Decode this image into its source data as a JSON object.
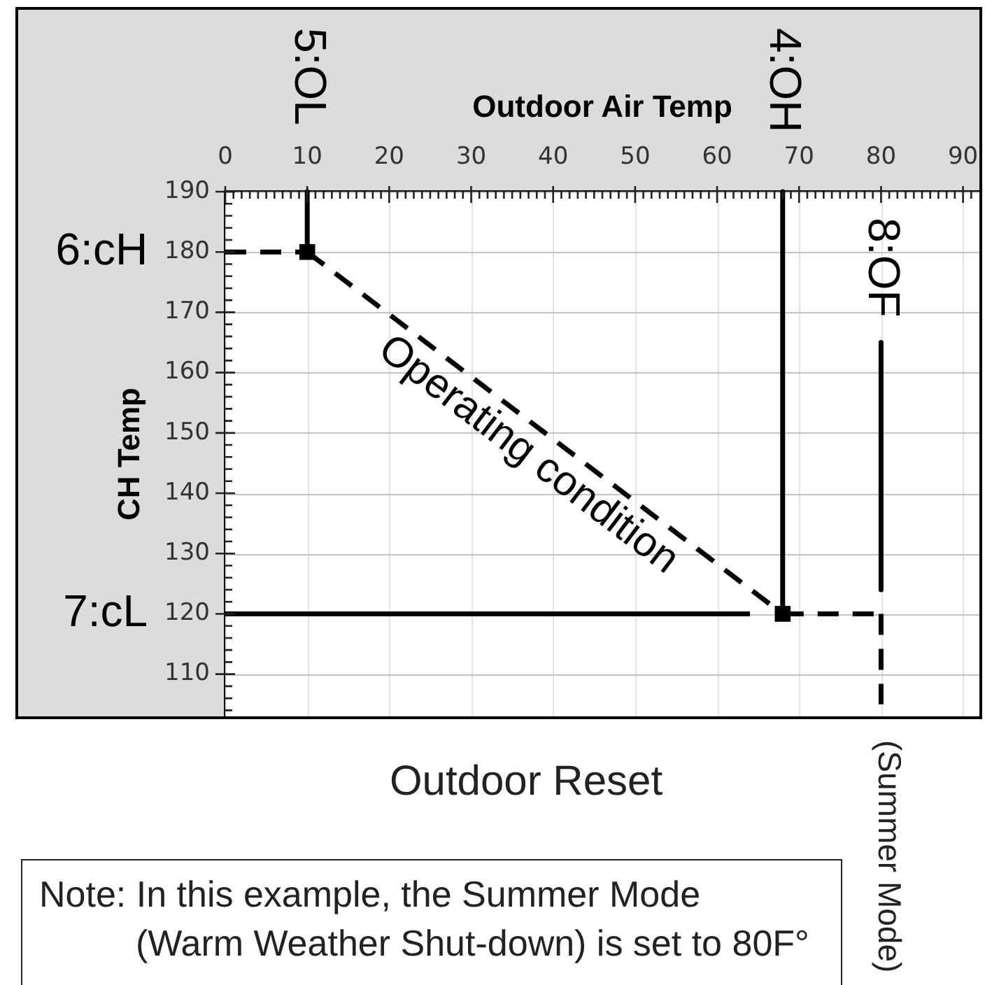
{
  "chart_data": {
    "type": "line",
    "title": "Outdoor Reset",
    "xlabel": "Outdoor Air Temp",
    "ylabel": "CH Temp",
    "xlim": [
      0,
      92
    ],
    "xticks": [
      0,
      {
        "value": 1,
        "label": null
      },
      {
        "value": 2,
        "label": null
      },
      {
        "value": 3,
        "label": null
      },
      {
        "value": 4,
        "label": null
      },
      {
        "value": 5,
        "label": null
      },
      {
        "value": 6,
        "label": null
      },
      {
        "value": 7,
        "label": null
      },
      {
        "value": 8,
        "label": null
      },
      {
        "value": 9,
        "label": null
      },
      10,
      {
        "value": 11,
        "label": null
      },
      {
        "value": 12,
        "label": null
      },
      {
        "value": 13,
        "label": null
      },
      {
        "value": 14,
        "label": null
      },
      {
        "value": 15,
        "label": null
      },
      {
        "value": 16,
        "label": null
      },
      {
        "value": 17,
        "label": null
      },
      {
        "value": 18,
        "label": null
      },
      {
        "value": 19,
        "label": null
      },
      20,
      {
        "value": 21,
        "label": null
      },
      {
        "value": 22,
        "label": null
      },
      {
        "value": 23,
        "label": null
      },
      {
        "value": 24,
        "label": null
      },
      {
        "value": 25,
        "label": null
      },
      {
        "value": 26,
        "label": null
      },
      {
        "value": 27,
        "label": null
      },
      {
        "value": 28,
        "label": null
      },
      {
        "value": 29,
        "label": null
      },
      30,
      {
        "value": 31,
        "label": null
      },
      {
        "value": 32,
        "label": null
      },
      {
        "value": 33,
        "label": null
      },
      {
        "value": 34,
        "label": null
      },
      {
        "value": 35,
        "label": null
      },
      {
        "value": 36,
        "label": null
      },
      {
        "value": 37,
        "label": null
      },
      {
        "value": 38,
        "label": null
      },
      {
        "value": 39,
        "label": null
      },
      40,
      {
        "value": 41,
        "label": null
      },
      {
        "value": 42,
        "label": null
      },
      {
        "value": 43,
        "label": null
      },
      {
        "value": 44,
        "label": null
      },
      {
        "value": 45,
        "label": null
      },
      {
        "value": 46,
        "label": null
      },
      {
        "value": 47,
        "label": null
      },
      {
        "value": 48,
        "label": null
      },
      {
        "value": 49,
        "label": null
      },
      50,
      {
        "value": 51,
        "label": null
      },
      {
        "value": 52,
        "label": null
      },
      {
        "value": 53,
        "label": null
      },
      {
        "value": 54,
        "label": null
      },
      {
        "value": 55,
        "label": null
      },
      {
        "value": 56,
        "label": null
      },
      {
        "value": 57,
        "label": null
      },
      {
        "value": 58,
        "label": null
      },
      {
        "value": 59,
        "label": null
      },
      60,
      {
        "value": 61,
        "label": null
      },
      {
        "value": 62,
        "label": null
      },
      {
        "value": 63,
        "label": null
      },
      {
        "value": 64,
        "label": null
      },
      {
        "value": 65,
        "label": null
      },
      {
        "value": 66,
        "label": null
      },
      {
        "value": 67,
        "label": null
      },
      {
        "value": 68,
        "label": null
      },
      {
        "value": 69,
        "label": null
      },
      70,
      {
        "value": 71,
        "label": null
      },
      {
        "value": 72,
        "label": null
      },
      {
        "value": 73,
        "label": null
      },
      {
        "value": 74,
        "label": null
      },
      {
        "value": 75,
        "label": null
      },
      {
        "value": 76,
        "label": null
      },
      {
        "value": 77,
        "label": null
      },
      {
        "value": 78,
        "label": null
      },
      {
        "value": 79,
        "label": null
      },
      80,
      {
        "value": 81,
        "label": null
      },
      {
        "value": 82,
        "label": null
      },
      {
        "value": 83,
        "label": null
      },
      {
        "value": 84,
        "label": null
      },
      {
        "value": 85,
        "label": null
      },
      {
        "value": 86,
        "label": null
      },
      {
        "value": 87,
        "label": null
      },
      {
        "value": 88,
        "label": null
      },
      {
        "value": 89,
        "label": null
      },
      90,
      {
        "value": 91,
        "label": null
      }
    ],
    "ylim": [
      103,
      190
    ],
    "yticks": [
      {
        "value": 104,
        "label": null
      },
      {
        "value": 106,
        "label": null
      },
      {
        "value": 108,
        "label": null
      },
      110,
      {
        "value": 112,
        "label": null
      },
      {
        "value": 114,
        "label": null
      },
      {
        "value": 116,
        "label": null
      },
      {
        "value": 118,
        "label": null
      },
      120,
      {
        "value": 122,
        "label": null
      },
      {
        "value": 124,
        "label": null
      },
      {
        "value": 126,
        "label": null
      },
      {
        "value": 128,
        "label": null
      },
      130,
      {
        "value": 132,
        "label": null
      },
      {
        "value": 134,
        "label": null
      },
      {
        "value": 136,
        "label": null
      },
      {
        "value": 138,
        "label": null
      },
      140,
      {
        "value": 142,
        "label": null
      },
      {
        "value": 144,
        "label": null
      },
      {
        "value": 146,
        "label": null
      },
      {
        "value": 148,
        "label": null
      },
      150,
      {
        "value": 152,
        "label": null
      },
      {
        "value": 154,
        "label": null
      },
      {
        "value": 156,
        "label": null
      },
      {
        "value": 158,
        "label": null
      },
      160,
      {
        "value": 162,
        "label": null
      },
      {
        "value": 164,
        "label": null
      },
      {
        "value": 166,
        "label": null
      },
      {
        "value": 168,
        "label": null
      },
      170,
      {
        "value": 172,
        "label": null
      },
      {
        "value": 174,
        "label": null
      },
      {
        "value": 176,
        "label": null
      },
      {
        "value": 178,
        "label": null
      },
      180,
      {
        "value": 182,
        "label": null
      },
      {
        "value": 184,
        "label": null
      },
      {
        "value": 186,
        "label": null
      },
      {
        "value": 188,
        "label": null
      },
      190
    ],
    "grid": true,
    "legend": false,
    "series": [
      {
        "name": "Operating condition",
        "color": "#000000",
        "x": [
          10,
          68
        ],
        "values": [
          180,
          120
        ],
        "line_style": "dashed",
        "marker": "square"
      },
      {
        "name": "5:OL",
        "color": "#000000",
        "x": [
          10,
          10
        ],
        "values": [
          190,
          180
        ],
        "line_style": "solid"
      },
      {
        "name": "4:OH",
        "color": "#000000",
        "x": [
          68,
          68
        ],
        "values": [
          190,
          120
        ],
        "line_style": "solid"
      },
      {
        "name": "6:cH",
        "color": "#000000",
        "x": [
          0,
          10
        ],
        "values": [
          180,
          180
        ],
        "line_style": "dashed"
      },
      {
        "name": "7:cL",
        "color": "#000000",
        "x": [
          0,
          64
        ],
        "values": [
          120,
          120
        ],
        "line_style": "solid"
      },
      {
        "color": "#000000",
        "x": [
          68,
          80
        ],
        "values": [
          120,
          120
        ],
        "line_style": "dashed"
      },
      {
        "name": "8:OF",
        "color": "#000000",
        "x": [
          80,
          80
        ],
        "values": [
          165,
          124
        ],
        "line_style": "solid"
      },
      {
        "color": "#000000",
        "x": [
          80,
          80
        ],
        "values": [
          120,
          105
        ],
        "line_style": "dashed"
      }
    ],
    "annotations": [
      "(Summer Mode)",
      "Note: In this example, the Summer Mode\n(Warm Weather Shut-down) is set to 80F°"
    ]
  }
}
